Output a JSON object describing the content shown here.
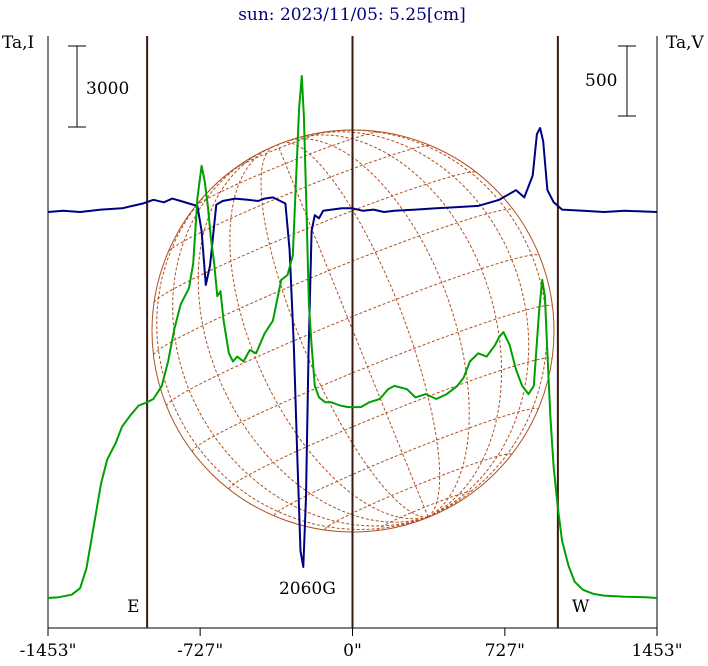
{
  "chart_data": {
    "type": "line",
    "title": "sun: 2023/11/05: 5.25[cm]",
    "ylabel_left": "Ta,I",
    "ylabel_right": "Ta,V",
    "scale_left": "3000",
    "scale_right": "500",
    "x_ticks": [
      {
        "value": -1453,
        "label": "-1453\""
      },
      {
        "value": -727,
        "label": "-727\""
      },
      {
        "value": 0,
        "label": "0\""
      },
      {
        "value": 727,
        "label": "727\""
      },
      {
        "value": 1453,
        "label": "1453\""
      }
    ],
    "xlim": [
      -1453,
      1453
    ],
    "limb_markers": [
      {
        "x": -980,
        "label": "E"
      },
      {
        "x": 980,
        "label": "W"
      }
    ],
    "center_marker_x": 0,
    "annotation": {
      "text": "2060G",
      "x": -220
    },
    "series": [
      {
        "key": "stokes-v",
        "color": "#000080",
        "ylim": [
          -1200,
          500
        ],
        "points": [
          [
            -1453,
            0
          ],
          [
            -1380,
            5
          ],
          [
            -1300,
            0
          ],
          [
            -1200,
            10
          ],
          [
            -1100,
            15
          ],
          [
            -1050,
            25
          ],
          [
            -1000,
            35
          ],
          [
            -950,
            50
          ],
          [
            -900,
            40
          ],
          [
            -860,
            55
          ],
          [
            -820,
            45
          ],
          [
            -780,
            35
          ],
          [
            -740,
            25
          ],
          [
            -720,
            -60
          ],
          [
            -700,
            -230
          ],
          [
            -680,
            -170
          ],
          [
            -650,
            30
          ],
          [
            -620,
            45
          ],
          [
            -560,
            55
          ],
          [
            -500,
            50
          ],
          [
            -450,
            45
          ],
          [
            -420,
            55
          ],
          [
            -380,
            60
          ],
          [
            -320,
            35
          ],
          [
            -300,
            -120
          ],
          [
            -280,
            -420
          ],
          [
            -262,
            -800
          ],
          [
            -248,
            -1070
          ],
          [
            -235,
            -1120
          ],
          [
            -222,
            -900
          ],
          [
            -210,
            -450
          ],
          [
            -195,
            -60
          ],
          [
            -180,
            -10
          ],
          [
            -160,
            -20
          ],
          [
            -140,
            5
          ],
          [
            -100,
            10
          ],
          [
            -50,
            15
          ],
          [
            0,
            15
          ],
          [
            50,
            5
          ],
          [
            100,
            10
          ],
          [
            150,
            0
          ],
          [
            200,
            5
          ],
          [
            300,
            10
          ],
          [
            400,
            15
          ],
          [
            500,
            20
          ],
          [
            600,
            25
          ],
          [
            700,
            50
          ],
          [
            780,
            90
          ],
          [
            820,
            60
          ],
          [
            860,
            150
          ],
          [
            880,
            320
          ],
          [
            895,
            345
          ],
          [
            910,
            290
          ],
          [
            930,
            90
          ],
          [
            960,
            40
          ],
          [
            1000,
            10
          ],
          [
            1100,
            5
          ],
          [
            1200,
            0
          ],
          [
            1300,
            5
          ],
          [
            1453,
            0
          ]
        ]
      },
      {
        "key": "stokes-i",
        "color": "#00a000",
        "ylim": [
          -600,
          33000
        ],
        "points": [
          [
            -1453,
            0
          ],
          [
            -1400,
            50
          ],
          [
            -1340,
            200
          ],
          [
            -1300,
            600
          ],
          [
            -1270,
            1800
          ],
          [
            -1240,
            4000
          ],
          [
            -1200,
            7000
          ],
          [
            -1170,
            8500
          ],
          [
            -1130,
            9500
          ],
          [
            -1100,
            10500
          ],
          [
            -1060,
            11200
          ],
          [
            -1020,
            11800
          ],
          [
            -980,
            12000
          ],
          [
            -950,
            12200
          ],
          [
            -910,
            13000
          ],
          [
            -880,
            14500
          ],
          [
            -850,
            16500
          ],
          [
            -820,
            18000
          ],
          [
            -780,
            19000
          ],
          [
            -760,
            20500
          ],
          [
            -740,
            24500
          ],
          [
            -720,
            26500
          ],
          [
            -705,
            25500
          ],
          [
            -690,
            24000
          ],
          [
            -675,
            22000
          ],
          [
            -660,
            20500
          ],
          [
            -645,
            18500
          ],
          [
            -630,
            18800
          ],
          [
            -615,
            17000
          ],
          [
            -590,
            15000
          ],
          [
            -570,
            14500
          ],
          [
            -550,
            14800
          ],
          [
            -520,
            14500
          ],
          [
            -490,
            15200
          ],
          [
            -460,
            15000
          ],
          [
            -420,
            16200
          ],
          [
            -380,
            17000
          ],
          [
            -340,
            19500
          ],
          [
            -310,
            19800
          ],
          [
            -285,
            21000
          ],
          [
            -268,
            26000
          ],
          [
            -255,
            30000
          ],
          [
            -242,
            32000
          ],
          [
            -232,
            29500
          ],
          [
            -220,
            24000
          ],
          [
            -208,
            18000
          ],
          [
            -195,
            15500
          ],
          [
            -180,
            13000
          ],
          [
            -160,
            12300
          ],
          [
            -130,
            12000
          ],
          [
            -100,
            12000
          ],
          [
            -60,
            11800
          ],
          [
            -20,
            11700
          ],
          [
            0,
            11700
          ],
          [
            40,
            11700
          ],
          [
            80,
            12000
          ],
          [
            130,
            12200
          ],
          [
            170,
            12800
          ],
          [
            200,
            13000
          ],
          [
            260,
            12800
          ],
          [
            300,
            12300
          ],
          [
            350,
            12500
          ],
          [
            400,
            12200
          ],
          [
            450,
            12500
          ],
          [
            500,
            13000
          ],
          [
            530,
            13500
          ],
          [
            560,
            14500
          ],
          [
            600,
            15000
          ],
          [
            640,
            14800
          ],
          [
            680,
            15500
          ],
          [
            700,
            16000
          ],
          [
            720,
            16300
          ],
          [
            750,
            15500
          ],
          [
            780,
            14000
          ],
          [
            810,
            13000
          ],
          [
            840,
            12500
          ],
          [
            865,
            13000
          ],
          [
            890,
            17500
          ],
          [
            905,
            19500
          ],
          [
            918,
            18500
          ],
          [
            930,
            15000
          ],
          [
            945,
            11000
          ],
          [
            960,
            8000
          ],
          [
            980,
            5500
          ],
          [
            1000,
            3500
          ],
          [
            1030,
            2000
          ],
          [
            1060,
            1000
          ],
          [
            1100,
            500
          ],
          [
            1150,
            250
          ],
          [
            1200,
            150
          ],
          [
            1300,
            80
          ],
          [
            1400,
            40
          ],
          [
            1453,
            0
          ]
        ]
      }
    ]
  }
}
